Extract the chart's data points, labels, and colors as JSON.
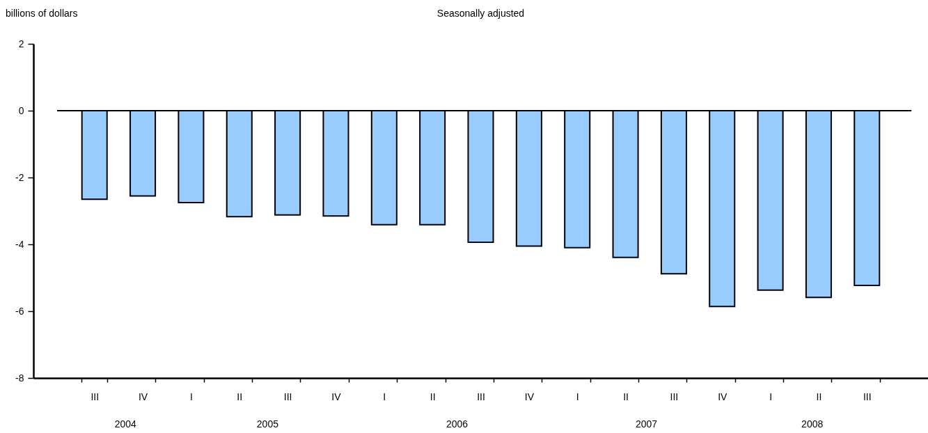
{
  "chart_data": {
    "type": "bar",
    "title": "Seasonally adjusted",
    "ylabel": "billions of dollars",
    "categories": [
      "III",
      "IV",
      "I",
      "II",
      "III",
      "IV",
      "I",
      "II",
      "III",
      "IV",
      "I",
      "II",
      "III",
      "IV",
      "I",
      "II",
      "III"
    ],
    "values": [
      -2.65,
      -2.55,
      -2.75,
      -3.17,
      -3.12,
      -3.15,
      -3.41,
      -3.41,
      -3.94,
      -4.05,
      -4.1,
      -4.39,
      -4.88,
      -5.86,
      -5.37,
      -5.59,
      -5.23
    ],
    "color": "#99ccff",
    "ylim": [
      -8,
      2
    ],
    "yticks": [
      -8,
      -6,
      -4,
      -2,
      0,
      2
    ],
    "grid": false,
    "ref_lines": [
      {
        "axis": "y",
        "value": 0
      }
    ],
    "annotations": [
      "2004",
      "2005",
      "2006",
      "2007",
      "2008"
    ]
  }
}
